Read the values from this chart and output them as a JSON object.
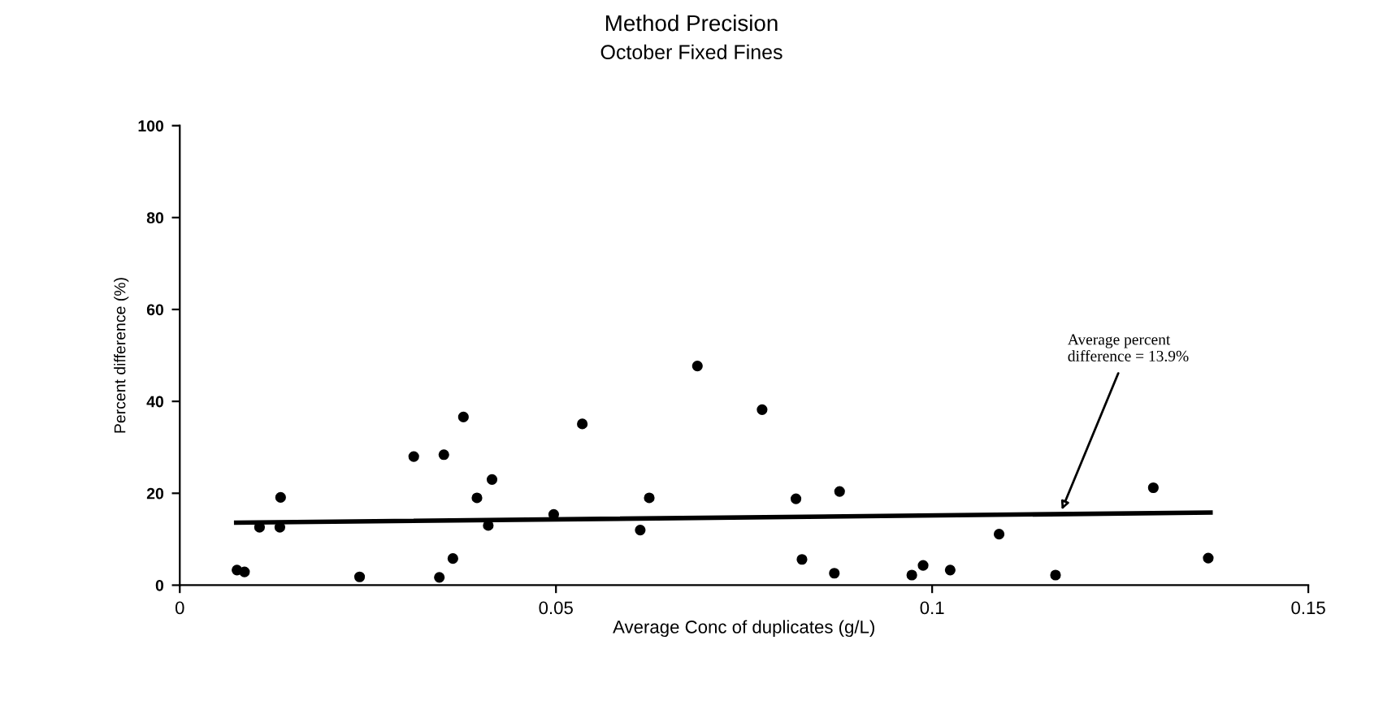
{
  "chart_data": {
    "type": "scatter",
    "title": "Method Precision",
    "subtitle": "October Fixed Fines",
    "xlabel": "Average Conc of duplicates (g/L)",
    "ylabel": "Percent difference (%)",
    "xlim": [
      0,
      0.15
    ],
    "xticks": [
      0,
      0.05,
      0.1,
      0.15
    ],
    "ylim": [
      0,
      100
    ],
    "yticks": [
      0,
      20,
      40,
      60,
      80,
      100
    ],
    "grid": false,
    "series": [
      {
        "marker": "circle",
        "color": "#000000",
        "x": [
          0.0076,
          0.0086,
          0.0106,
          0.0133,
          0.0134,
          0.0239,
          0.0311,
          0.0345,
          0.0351,
          0.0363,
          0.0377,
          0.0395,
          0.041,
          0.0415,
          0.0497,
          0.0535,
          0.0612,
          0.0624,
          0.0688,
          0.0774,
          0.0819,
          0.0827,
          0.0877,
          0.087,
          0.0973,
          0.0988,
          0.1024,
          0.1089,
          0.1164,
          0.1294,
          0.1367
        ],
        "values": [
          3.3,
          2.9,
          12.6,
          12.6,
          19.1,
          1.8,
          28.0,
          1.7,
          28.4,
          5.8,
          36.6,
          19.0,
          13.0,
          23.0,
          15.4,
          35.1,
          12.0,
          19.0,
          47.7,
          38.2,
          18.8,
          5.6,
          20.4,
          2.6,
          2.2,
          4.3,
          3.3,
          11.1,
          2.2,
          21.2,
          5.9
        ]
      },
      {
        "type": "line",
        "marker": "none",
        "color": "#000000",
        "x": [
          0.0075,
          0.137
        ],
        "values": [
          13.6,
          15.8
        ]
      }
    ],
    "annotations": [
      {
        "text": "Average percent\ndifference = 13.9%",
        "x": 0.117,
        "y": 15.5
      }
    ]
  }
}
